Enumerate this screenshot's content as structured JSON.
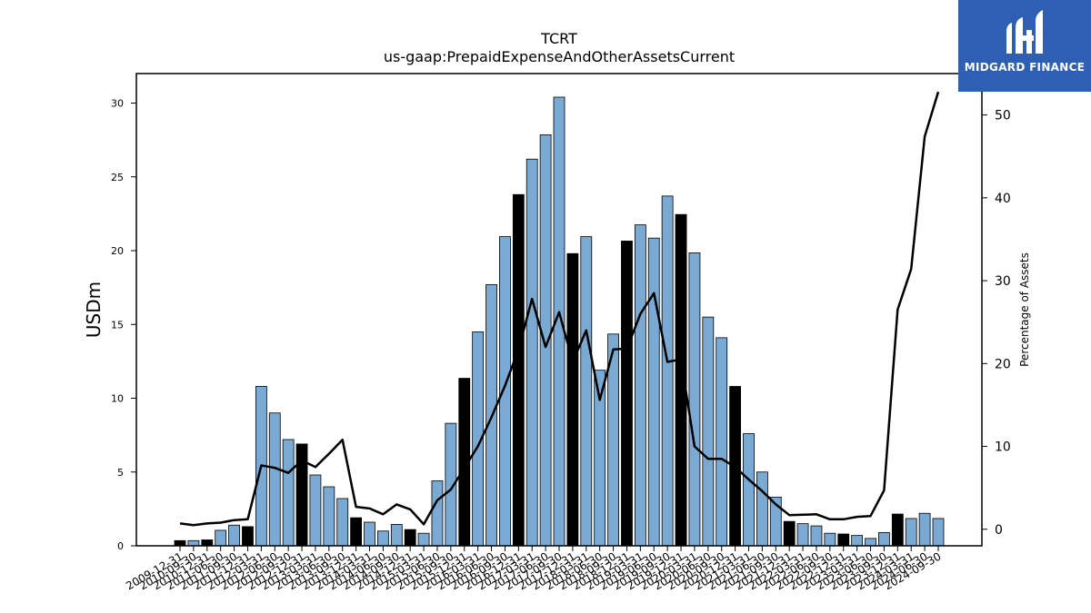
{
  "chart_data": {
    "type": "bar",
    "title": "TCRT",
    "subtitle": "us-gaap:PrepaidExpenseAndOtherAssetsCurrent",
    "ylabel": "USDm",
    "y2label": "Percentage of Assets",
    "ylim": [
      0,
      32
    ],
    "y2lim": [
      -2,
      55
    ],
    "yticks": [
      0,
      5,
      10,
      15,
      20,
      25,
      30
    ],
    "y2ticks": [
      0,
      10,
      20,
      30,
      40,
      50
    ],
    "grid": false,
    "colors": {
      "annual_bar": "#000000",
      "quarter_bar": "#7aaad3",
      "line": "#000000"
    },
    "categories": [
      "2009-12-31",
      "2010-09-30",
      "2010-12-31",
      "2011-06-30",
      "2011-09-30",
      "2011-12-31",
      "2012-03-31",
      "2012-06-30",
      "2012-09-30",
      "2012-12-31",
      "2013-03-31",
      "2013-06-30",
      "2013-09-30",
      "2013-12-31",
      "2014-03-31",
      "2014-06-30",
      "2014-09-30",
      "2014-12-31",
      "2015-03-31",
      "2015-06-30",
      "2015-09-30",
      "2015-12-31",
      "2016-03-31",
      "2016-06-30",
      "2016-09-30",
      "2016-12-31",
      "2017-03-31",
      "2017-06-30",
      "2017-09-30",
      "2017-12-31",
      "2018-03-31",
      "2018-06-30",
      "2018-09-30",
      "2018-12-31",
      "2019-03-31",
      "2019-06-30",
      "2019-09-30",
      "2019-12-31",
      "2020-03-31",
      "2020-06-30",
      "2020-09-30",
      "2020-12-31",
      "2021-03-31",
      "2021-06-30",
      "2021-09-30",
      "2021-12-31",
      "2022-03-31",
      "2022-06-30",
      "2022-09-30",
      "2022-12-31",
      "2023-03-31",
      "2023-06-30",
      "2023-09-30",
      "2023-12-31",
      "2024-03-31",
      "2024-06-30",
      "2024-09-30"
    ],
    "series": [
      {
        "values": [
          0.35,
          0.35,
          0.4,
          1.05,
          1.4,
          1.3,
          10.8,
          9.0,
          7.2,
          6.9,
          4.8,
          4.0,
          3.2,
          1.9,
          1.6,
          1.0,
          1.45,
          1.1,
          0.85,
          4.4,
          8.3,
          11.35,
          14.5,
          17.7,
          20.95,
          23.8,
          26.2,
          27.85,
          30.4,
          19.8,
          20.95,
          11.9,
          14.35,
          20.65,
          21.75,
          20.85,
          23.7,
          22.45,
          19.85,
          15.5,
          14.1,
          10.8,
          7.6,
          5.0,
          3.3,
          1.65,
          1.5,
          1.35,
          0.85,
          0.8,
          0.7,
          0.5,
          0.9,
          2.15,
          1.85,
          2.2,
          1.85
        ],
        "annual": [
          true,
          false,
          true,
          false,
          false,
          true,
          false,
          false,
          false,
          true,
          false,
          false,
          false,
          true,
          false,
          false,
          false,
          true,
          false,
          false,
          false,
          true,
          false,
          false,
          false,
          true,
          false,
          false,
          false,
          true,
          false,
          false,
          false,
          true,
          false,
          false,
          false,
          true,
          false,
          false,
          false,
          true,
          false,
          false,
          false,
          true,
          false,
          false,
          false,
          true,
          false,
          false,
          false,
          true,
          false,
          false,
          false
        ]
      },
      {
        "name": "Percentage of Assets",
        "axis": "right",
        "values": [
          0.7,
          0.5,
          0.7,
          0.8,
          1.1,
          1.2,
          7.7,
          7.4,
          6.8,
          8.3,
          7.5,
          9.1,
          10.8,
          2.7,
          2.5,
          1.8,
          3.0,
          2.4,
          0.6,
          3.5,
          4.8,
          7.4,
          10.0,
          13.5,
          17.3,
          21.7,
          27.8,
          22.0,
          26.2,
          20.2,
          24.0,
          15.6,
          21.7,
          21.8,
          26.0,
          28.5,
          20.2,
          20.5,
          10.0,
          8.5,
          8.5,
          7.5,
          6.0,
          4.6,
          3.0,
          1.7,
          1.75,
          1.8,
          1.2,
          1.2,
          1.5,
          1.6,
          4.7,
          26.5,
          31.4,
          47.4,
          52.8
        ]
      }
    ]
  },
  "branding": {
    "logo_text": "MIDGARD FINANCE"
  }
}
